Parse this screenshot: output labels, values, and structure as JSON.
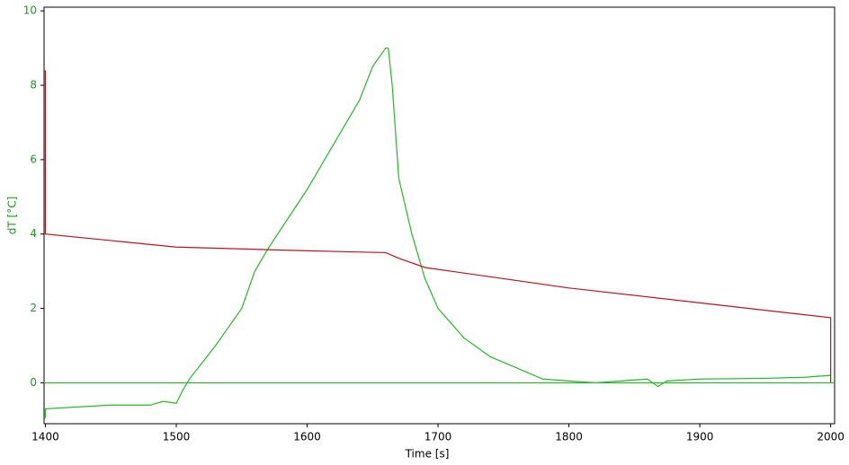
{
  "chart_data": {
    "type": "line",
    "x_label": "Time [s]",
    "y_label": "dT [°C]",
    "xlim": [
      1399,
      2003
    ],
    "ylim": [
      -1.1,
      10.1
    ],
    "xticks": [
      1400,
      1500,
      1600,
      1700,
      1800,
      1900,
      2000
    ],
    "yticks": [
      0,
      2,
      4,
      6,
      8,
      10
    ],
    "axis_color": "#1a9a1a",
    "series": [
      {
        "color": "#22bb22",
        "x": [
          1400,
          1400,
          1450,
          1480,
          1490,
          1500,
          1505,
          1510,
          1530,
          1550,
          1560,
          1570,
          1600,
          1620,
          1640,
          1650,
          1660,
          1662,
          1665,
          1670,
          1680,
          1690,
          1700,
          1720,
          1740,
          1760,
          1780,
          1800,
          1820,
          1840,
          1860,
          1868,
          1875,
          1900,
          1950,
          1980,
          2000
        ],
        "values": [
          -0.95,
          -0.7,
          -0.6,
          -0.6,
          -0.5,
          -0.55,
          -0.2,
          0.1,
          1.0,
          2.0,
          3.0,
          3.6,
          5.2,
          6.4,
          7.6,
          8.5,
          9.0,
          9.0,
          8.0,
          5.5,
          4.0,
          2.8,
          2.0,
          1.2,
          0.7,
          0.4,
          0.1,
          0.05,
          0.0,
          0.05,
          0.1,
          -0.1,
          0.05,
          0.1,
          0.12,
          0.15,
          0.2
        ]
      },
      {
        "color": "#c0101a",
        "x": [
          1400,
          1400,
          1500,
          1600,
          1660,
          1670,
          1690,
          1750,
          1800,
          1900,
          2000,
          2000
        ],
        "values": [
          8.4,
          4.0,
          3.65,
          3.55,
          3.5,
          3.35,
          3.1,
          2.8,
          2.55,
          2.15,
          1.75,
          0
        ]
      },
      {
        "color": "#22bb22",
        "x": [
          1399,
          2003
        ],
        "values": [
          0,
          0
        ]
      }
    ]
  }
}
